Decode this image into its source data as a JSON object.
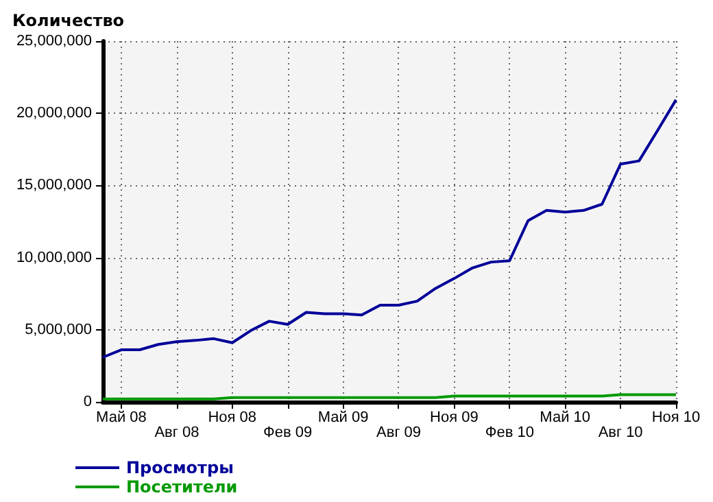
{
  "chart_data": {
    "type": "line",
    "ylabel": "Количество",
    "categories": [
      null,
      "Май 08",
      null,
      null,
      "Авг 08",
      null,
      null,
      "Ноя 08",
      null,
      null,
      "Фев 09",
      null,
      null,
      "Май 09",
      null,
      null,
      "Авг 09",
      null,
      null,
      "Ноя 09",
      null,
      null,
      "Фев 10",
      null,
      null,
      "Май 10",
      null,
      null,
      "Авг 10",
      null,
      null,
      "Ноя 10"
    ],
    "series": [
      {
        "name": "Просмотры",
        "color": "#000099",
        "values": [
          3090000,
          3610000,
          3610000,
          3980000,
          4170000,
          4260000,
          4380000,
          4100000,
          4940000,
          5590000,
          5370000,
          6200000,
          6110000,
          6110000,
          6020000,
          6700000,
          6700000,
          6980000,
          7870000,
          8550000,
          9290000,
          9690000,
          9780000,
          12560000,
          13270000,
          13150000,
          13270000,
          13700000,
          16480000,
          16700000,
          18800000,
          20930000
        ]
      },
      {
        "name": "Посетители",
        "color": "#009900",
        "values": [
          200000,
          200000,
          200000,
          200000,
          200000,
          200000,
          200000,
          300000,
          300000,
          300000,
          300000,
          300000,
          300000,
          300000,
          300000,
          300000,
          300000,
          300000,
          300000,
          400000,
          400000,
          400000,
          400000,
          400000,
          400000,
          400000,
          400000,
          400000,
          500000,
          500000,
          500000,
          500000
        ]
      }
    ],
    "ylim": [
      0,
      25000000
    ],
    "yticks": [
      {
        "value": 0,
        "label": "0"
      },
      {
        "value": 5000000,
        "label": "5,000,000"
      },
      {
        "value": 10000000,
        "label": "10,000,000"
      },
      {
        "value": 15000000,
        "label": "15,000,000"
      },
      {
        "value": 20000000,
        "label": "20,000,000"
      },
      {
        "value": 25000000,
        "label": "25,000,000"
      }
    ],
    "grid": true,
    "legend": "bottom left",
    "marker": "none",
    "line_style": "solid"
  }
}
